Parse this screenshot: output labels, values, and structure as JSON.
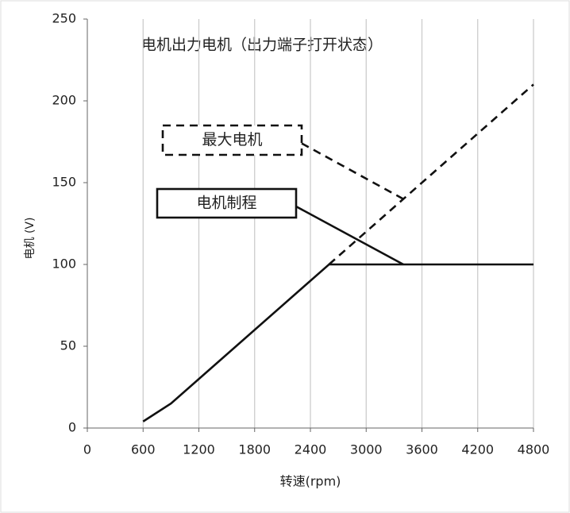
{
  "chart_data": {
    "type": "line",
    "title": "电机出力电机（出力端子打开状态）",
    "x_label": "转速(rpm)",
    "y_label": "电机 (V)",
    "series": [
      {
        "color": "#111111",
        "dash": false,
        "x": [
          600,
          900,
          2600,
          4800
        ],
        "values": [
          4,
          15,
          100,
          100
        ]
      },
      {
        "color": "#111111",
        "dash": true,
        "x": [
          2600,
          4800
        ],
        "values": [
          100,
          210
        ]
      }
    ],
    "annotations": [
      {
        "text": "最大电机",
        "x": 3400,
        "y": 140,
        "dash": true
      },
      {
        "text": "电机制程",
        "x": 3400,
        "y": 100,
        "dash": false
      }
    ],
    "xlim": [
      0,
      4800
    ],
    "ylim": [
      0,
      250
    ],
    "xticks": [
      0,
      600,
      1200,
      1800,
      2400,
      3000,
      3600,
      4200,
      4800
    ],
    "yticks": [
      0,
      50,
      100,
      150,
      200,
      250
    ],
    "grid": "x"
  }
}
